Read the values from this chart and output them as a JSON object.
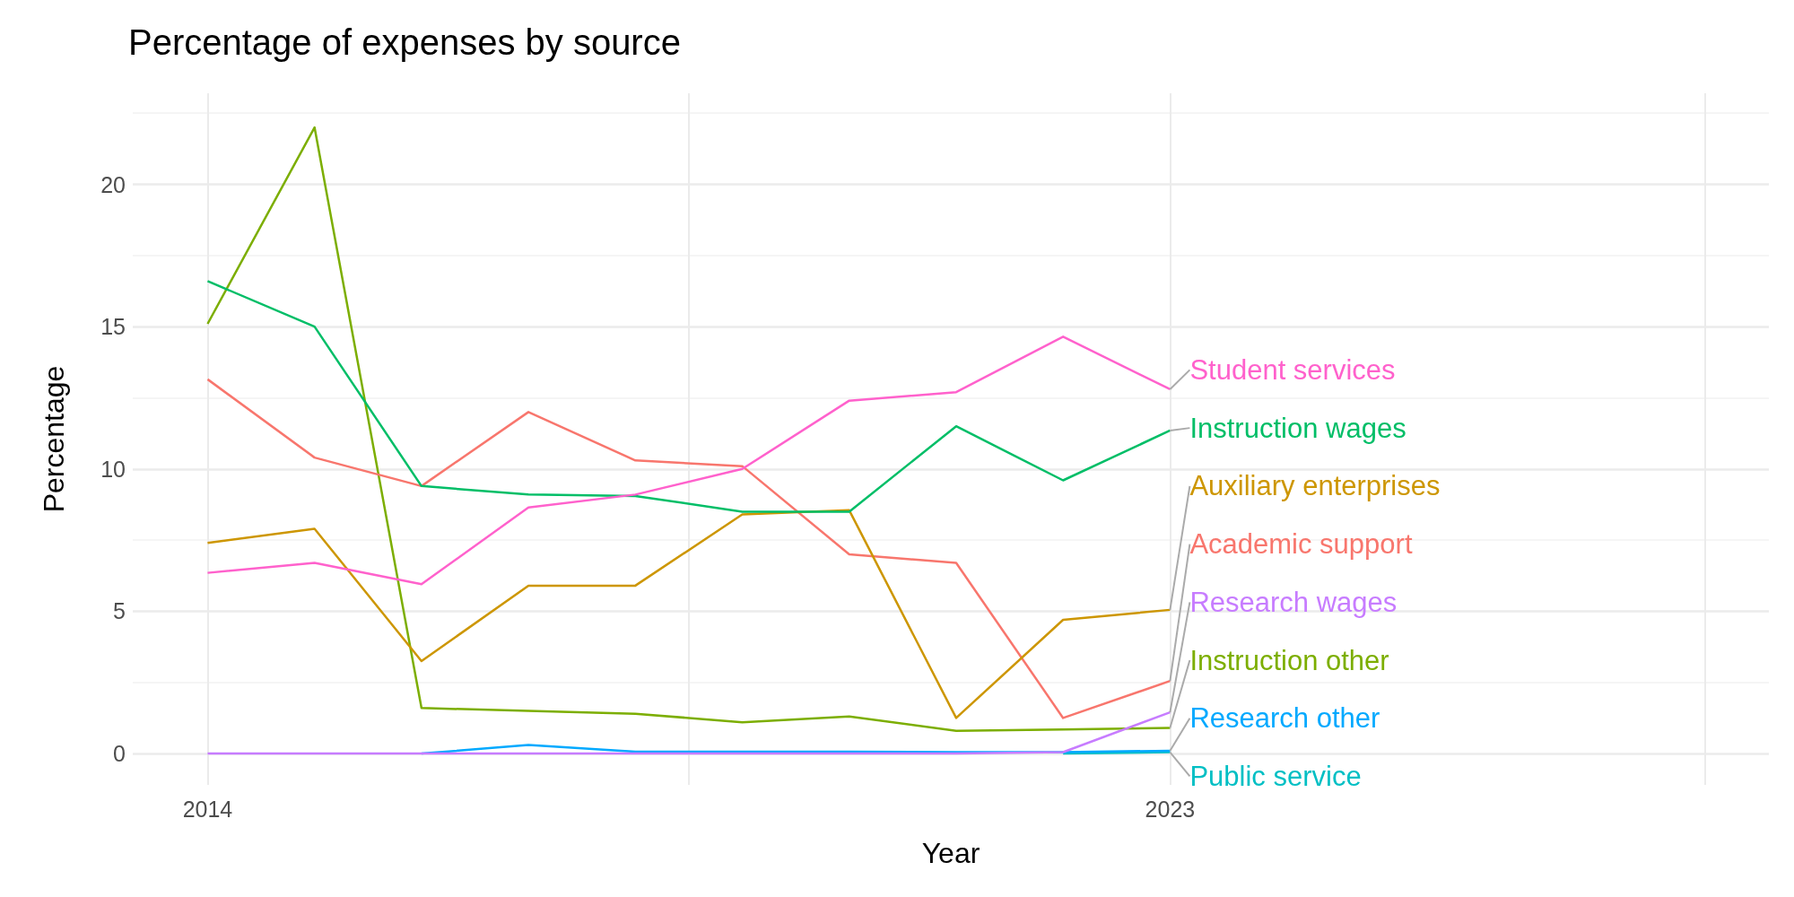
{
  "chart_data": {
    "type": "line",
    "title": "Percentage of expenses by source",
    "xlabel": "Year",
    "ylabel": "Percentage",
    "x": [
      2014,
      2015,
      2016,
      2017,
      2018,
      2019,
      2020,
      2021,
      2022,
      2023
    ],
    "xlim": [
      2013.3,
      2028.6
    ],
    "xticks": [
      2014,
      {
        "value": 2018.5,
        "label": null
      },
      2023,
      {
        "value": 2028,
        "label": null
      }
    ],
    "ylim": [
      -1.1,
      23.2
    ],
    "yticks": [
      0,
      5,
      10,
      15,
      20
    ],
    "grid": true,
    "series": [
      {
        "name": "Student services",
        "color": "#ff61cc",
        "values": [
          6.35,
          6.7,
          5.95,
          8.65,
          9.1,
          10.0,
          12.4,
          12.7,
          14.65,
          12.8
        ]
      },
      {
        "name": "Instruction wages",
        "color": "#00be67",
        "values": [
          16.6,
          15.0,
          9.4,
          9.1,
          9.05,
          8.5,
          8.5,
          11.5,
          9.6,
          11.35
        ]
      },
      {
        "name": "Auxiliary enterprises",
        "color": "#cd9600",
        "values": [
          7.4,
          7.9,
          3.25,
          5.9,
          5.9,
          8.4,
          8.55,
          1.25,
          4.7,
          5.05
        ]
      },
      {
        "name": "Academic support",
        "color": "#f8766d",
        "values": [
          13.15,
          10.4,
          9.4,
          12.0,
          10.3,
          10.1,
          7.0,
          6.7,
          1.25,
          2.55
        ]
      },
      {
        "name": "Research wages",
        "color": "#c77cff",
        "values": [
          0,
          0,
          0,
          0,
          0,
          0,
          0,
          0,
          0.05,
          1.45
        ]
      },
      {
        "name": "Instruction other",
        "color": "#7cae00",
        "values": [
          15.1,
          22.0,
          1.6,
          1.5,
          1.4,
          1.1,
          1.3,
          0.8,
          0.85,
          0.9
        ]
      },
      {
        "name": "Research other",
        "color": "#00a9ff",
        "values": [
          null,
          null,
          0,
          0.3,
          0.07,
          0.07,
          0.07,
          0.05,
          0.05,
          0.1
        ]
      },
      {
        "name": "Public service",
        "color": "#00bfc4",
        "values": [
          null,
          null,
          null,
          null,
          null,
          null,
          null,
          null,
          0,
          0.05
        ]
      }
    ]
  }
}
